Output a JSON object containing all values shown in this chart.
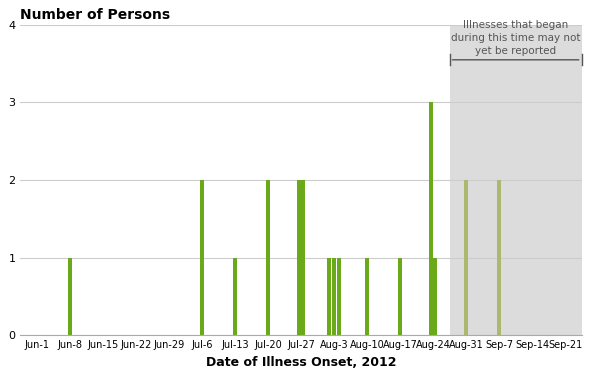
{
  "title": "Number of Persons",
  "xlabel": "Date of Illness Onset, 2012",
  "ylim": [
    0,
    4
  ],
  "yticks": [
    0,
    1,
    2,
    3,
    4
  ],
  "xtick_labels": [
    "Jun-1",
    "Jun-8",
    "Jun-15",
    "Jun-22",
    "Jun-29",
    "Jul-6",
    "Jul-13",
    "Jul-20",
    "Jul-27",
    "Aug-3",
    "Aug-10",
    "Aug-17",
    "Aug-24",
    "Aug-31",
    "Sep-7",
    "Sep-14",
    "Sep-21"
  ],
  "shade_start_label": "Aug-31",
  "shade_color": "#dcdcdc",
  "annotation_text": "Illnesses that began\nduring this time may not\nyet be reported",
  "bar_color_main": "#6aaa1a",
  "bar_color_shaded": "#aab870",
  "bar_width": 0.12,
  "background_color": "#ffffff",
  "grid_color": "#cccccc",
  "bars": [
    {
      "label": "Jun-8",
      "value": 1,
      "shaded": false
    },
    {
      "label": "Jul-6",
      "value": 2,
      "shaded": false
    },
    {
      "label": "Jul-13",
      "value": 1,
      "shaded": false
    },
    {
      "label": "Jul-20",
      "value": 2,
      "shaded": false
    },
    {
      "label": "Jul-27",
      "value": 2,
      "shaded": false
    },
    {
      "label": "Jul-27",
      "value": 2,
      "shaded": false
    },
    {
      "label": "Aug-3",
      "value": 1,
      "shaded": false
    },
    {
      "label": "Aug-3",
      "value": 1,
      "shaded": false
    },
    {
      "label": "Aug-3",
      "value": 1,
      "shaded": false
    },
    {
      "label": "Aug-10",
      "value": 1,
      "shaded": false
    },
    {
      "label": "Aug-17",
      "value": 1,
      "shaded": false
    },
    {
      "label": "Aug-24",
      "value": 3,
      "shaded": false
    },
    {
      "label": "Aug-24",
      "value": 1,
      "shaded": false
    },
    {
      "label": "Aug-31",
      "value": 2,
      "shaded": true
    },
    {
      "label": "Sep-7",
      "value": 2,
      "shaded": true
    }
  ]
}
